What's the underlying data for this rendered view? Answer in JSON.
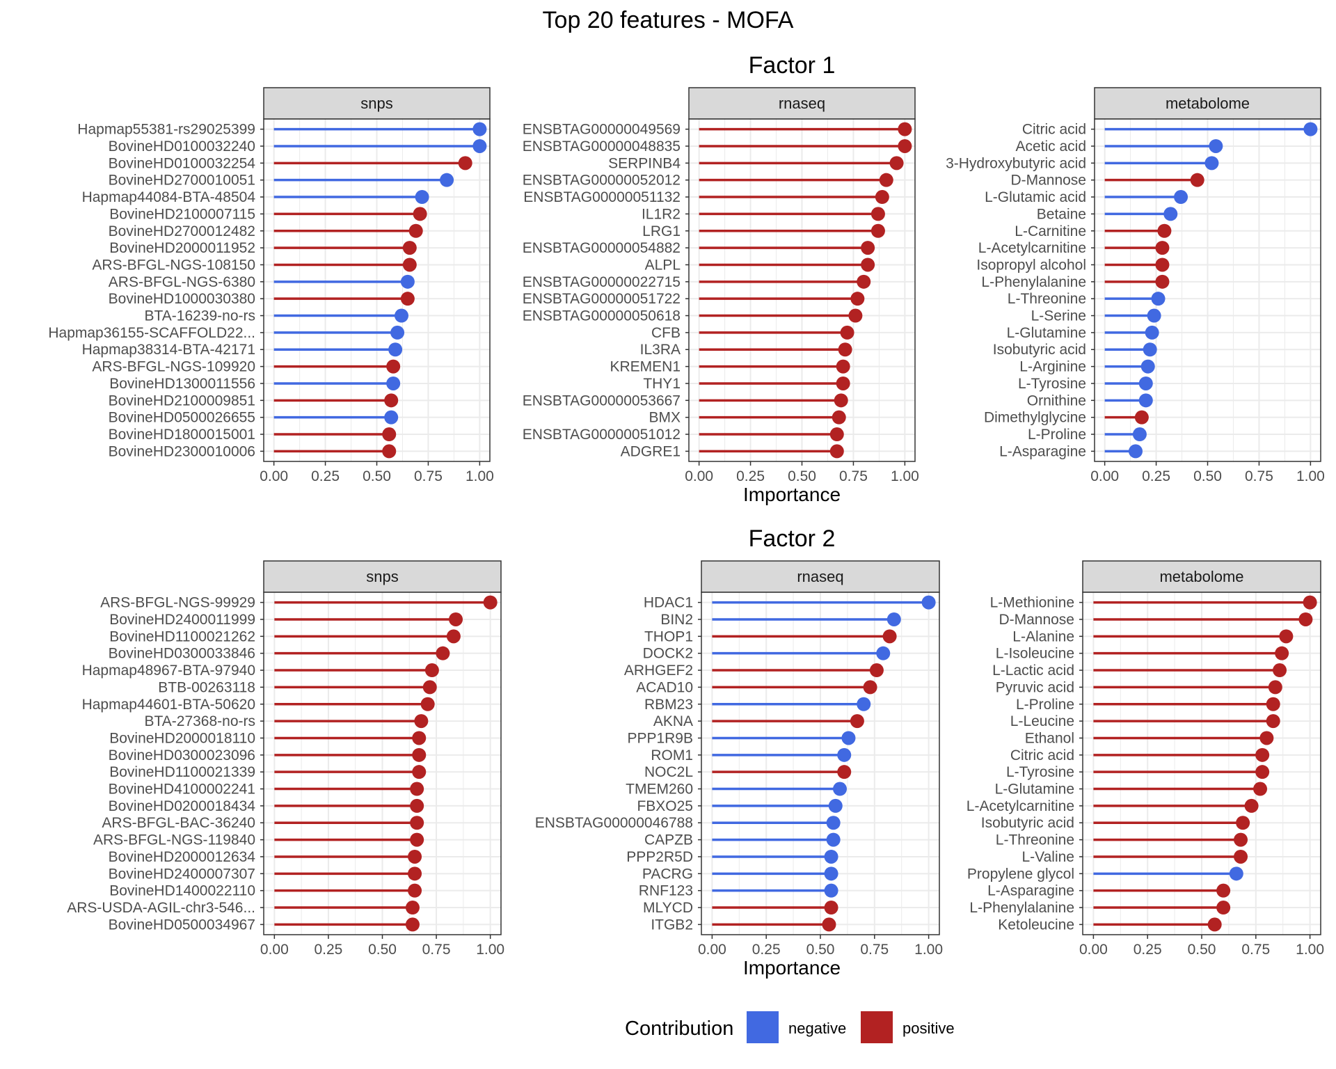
{
  "figure": {
    "title": "Top 20 features - MOFA",
    "xlabel": "Importance",
    "legend": {
      "title": "Contribution",
      "entries": [
        {
          "label": "negative",
          "color": "#4169E1"
        },
        {
          "label": "positive",
          "color": "#B22222"
        }
      ],
      "position": "bottom"
    }
  },
  "colors": {
    "negative": "#4169E1",
    "positive": "#B22222",
    "strip_bg": "#D9D9D9",
    "grid": "#EBEBEB"
  },
  "chart_data": [
    {
      "type": "lollipop",
      "factor": "Factor 1",
      "view": "snps",
      "xlim": [
        0,
        1
      ],
      "xticks": [
        "0.00",
        "0.25",
        "0.50",
        "0.75",
        "1.00"
      ],
      "grid": true,
      "features": [
        {
          "name": "Hapmap55381-rs29025399",
          "value": 1.0,
          "sign": "negative"
        },
        {
          "name": "BovineHD0100032240",
          "value": 1.0,
          "sign": "negative"
        },
        {
          "name": "BovineHD0100032254",
          "value": 0.93,
          "sign": "positive"
        },
        {
          "name": "BovineHD2700010051",
          "value": 0.84,
          "sign": "negative"
        },
        {
          "name": "Hapmap44084-BTA-48504",
          "value": 0.72,
          "sign": "negative"
        },
        {
          "name": "BovineHD2100007115",
          "value": 0.71,
          "sign": "positive"
        },
        {
          "name": "BovineHD2700012482",
          "value": 0.69,
          "sign": "positive"
        },
        {
          "name": "BovineHD2000011952",
          "value": 0.66,
          "sign": "positive"
        },
        {
          "name": "ARS-BFGL-NGS-108150",
          "value": 0.66,
          "sign": "positive"
        },
        {
          "name": "ARS-BFGL-NGS-6380",
          "value": 0.65,
          "sign": "negative"
        },
        {
          "name": "BovineHD1000030380",
          "value": 0.65,
          "sign": "positive"
        },
        {
          "name": "BTA-16239-no-rs",
          "value": 0.62,
          "sign": "negative"
        },
        {
          "name": "Hapmap36155-SCAFFOLD22...",
          "value": 0.6,
          "sign": "negative"
        },
        {
          "name": "Hapmap38314-BTA-42171",
          "value": 0.59,
          "sign": "negative"
        },
        {
          "name": "ARS-BFGL-NGS-109920",
          "value": 0.58,
          "sign": "positive"
        },
        {
          "name": "BovineHD1300011556",
          "value": 0.58,
          "sign": "negative"
        },
        {
          "name": "BovineHD2100009851",
          "value": 0.57,
          "sign": "positive"
        },
        {
          "name": "BovineHD0500026655",
          "value": 0.57,
          "sign": "negative"
        },
        {
          "name": "BovineHD1800015001",
          "value": 0.56,
          "sign": "positive"
        },
        {
          "name": "BovineHD2300010006",
          "value": 0.56,
          "sign": "positive"
        }
      ]
    },
    {
      "type": "lollipop",
      "factor": "Factor 1",
      "view": "rnaseq",
      "xlim": [
        0,
        1
      ],
      "xticks": [
        "0.00",
        "0.25",
        "0.50",
        "0.75",
        "1.00"
      ],
      "grid": true,
      "features": [
        {
          "name": "ENSBTAG00000049569",
          "value": 1.0,
          "sign": "positive"
        },
        {
          "name": "ENSBTAG00000048835",
          "value": 1.0,
          "sign": "positive"
        },
        {
          "name": "SERPINB4",
          "value": 0.96,
          "sign": "positive"
        },
        {
          "name": "ENSBTAG00000052012",
          "value": 0.91,
          "sign": "positive"
        },
        {
          "name": "ENSBTAG00000051132",
          "value": 0.89,
          "sign": "positive"
        },
        {
          "name": "IL1R2",
          "value": 0.87,
          "sign": "positive"
        },
        {
          "name": "LRG1",
          "value": 0.87,
          "sign": "positive"
        },
        {
          "name": "ENSBTAG00000054882",
          "value": 0.82,
          "sign": "positive"
        },
        {
          "name": "ALPL",
          "value": 0.82,
          "sign": "positive"
        },
        {
          "name": "ENSBTAG00000022715",
          "value": 0.8,
          "sign": "positive"
        },
        {
          "name": "ENSBTAG00000051722",
          "value": 0.77,
          "sign": "positive"
        },
        {
          "name": "ENSBTAG00000050618",
          "value": 0.76,
          "sign": "positive"
        },
        {
          "name": "CFB",
          "value": 0.72,
          "sign": "positive"
        },
        {
          "name": "IL3RA",
          "value": 0.71,
          "sign": "positive"
        },
        {
          "name": "KREMEN1",
          "value": 0.7,
          "sign": "positive"
        },
        {
          "name": "THY1",
          "value": 0.7,
          "sign": "positive"
        },
        {
          "name": "ENSBTAG00000053667",
          "value": 0.69,
          "sign": "positive"
        },
        {
          "name": "BMX",
          "value": 0.68,
          "sign": "positive"
        },
        {
          "name": "ENSBTAG00000051012",
          "value": 0.67,
          "sign": "positive"
        },
        {
          "name": "ADGRE1",
          "value": 0.67,
          "sign": "positive"
        }
      ]
    },
    {
      "type": "lollipop",
      "factor": "Factor 1",
      "view": "metabolome",
      "xlim": [
        0,
        1
      ],
      "xticks": [
        "0.00",
        "0.25",
        "0.50",
        "0.75",
        "1.00"
      ],
      "grid": true,
      "features": [
        {
          "name": "Citric acid",
          "value": 1.0,
          "sign": "negative"
        },
        {
          "name": "Acetic acid",
          "value": 0.54,
          "sign": "negative"
        },
        {
          "name": "3-Hydroxybutyric acid",
          "value": 0.52,
          "sign": "negative"
        },
        {
          "name": "D-Mannose",
          "value": 0.45,
          "sign": "positive"
        },
        {
          "name": "L-Glutamic acid",
          "value": 0.37,
          "sign": "negative"
        },
        {
          "name": "Betaine",
          "value": 0.32,
          "sign": "negative"
        },
        {
          "name": "L-Carnitine",
          "value": 0.29,
          "sign": "positive"
        },
        {
          "name": "L-Acetylcarnitine",
          "value": 0.28,
          "sign": "positive"
        },
        {
          "name": "Isopropyl alcohol",
          "value": 0.28,
          "sign": "positive"
        },
        {
          "name": "L-Phenylalanine",
          "value": 0.28,
          "sign": "positive"
        },
        {
          "name": "L-Threonine",
          "value": 0.26,
          "sign": "negative"
        },
        {
          "name": "L-Serine",
          "value": 0.24,
          "sign": "negative"
        },
        {
          "name": "L-Glutamine",
          "value": 0.23,
          "sign": "negative"
        },
        {
          "name": "Isobutyric acid",
          "value": 0.22,
          "sign": "negative"
        },
        {
          "name": "L-Arginine",
          "value": 0.21,
          "sign": "negative"
        },
        {
          "name": "L-Tyrosine",
          "value": 0.2,
          "sign": "negative"
        },
        {
          "name": "Ornithine",
          "value": 0.2,
          "sign": "negative"
        },
        {
          "name": "Dimethylglycine",
          "value": 0.18,
          "sign": "positive"
        },
        {
          "name": "L-Proline",
          "value": 0.17,
          "sign": "negative"
        },
        {
          "name": "L-Asparagine",
          "value": 0.15,
          "sign": "negative"
        }
      ]
    },
    {
      "type": "lollipop",
      "factor": "Factor 2",
      "view": "snps",
      "xlim": [
        0,
        1
      ],
      "xticks": [
        "0.00",
        "0.25",
        "0.50",
        "0.75",
        "1.00"
      ],
      "grid": true,
      "features": [
        {
          "name": "ARS-BFGL-NGS-99929",
          "value": 1.0,
          "sign": "positive"
        },
        {
          "name": "BovineHD2400011999",
          "value": 0.84,
          "sign": "positive"
        },
        {
          "name": "BovineHD1100021262",
          "value": 0.83,
          "sign": "positive"
        },
        {
          "name": "BovineHD0300033846",
          "value": 0.78,
          "sign": "positive"
        },
        {
          "name": "Hapmap48967-BTA-97940",
          "value": 0.73,
          "sign": "positive"
        },
        {
          "name": "BTB-00263118",
          "value": 0.72,
          "sign": "positive"
        },
        {
          "name": "Hapmap44601-BTA-50620",
          "value": 0.71,
          "sign": "positive"
        },
        {
          "name": "BTA-27368-no-rs",
          "value": 0.68,
          "sign": "positive"
        },
        {
          "name": "BovineHD2000018110",
          "value": 0.67,
          "sign": "positive"
        },
        {
          "name": "BovineHD0300023096",
          "value": 0.67,
          "sign": "positive"
        },
        {
          "name": "BovineHD1100021339",
          "value": 0.67,
          "sign": "positive"
        },
        {
          "name": "BovineHD4100002241",
          "value": 0.66,
          "sign": "positive"
        },
        {
          "name": "BovineHD0200018434",
          "value": 0.66,
          "sign": "positive"
        },
        {
          "name": "ARS-BFGL-BAC-36240",
          "value": 0.66,
          "sign": "positive"
        },
        {
          "name": "ARS-BFGL-NGS-119840",
          "value": 0.66,
          "sign": "positive"
        },
        {
          "name": "BovineHD2000012634",
          "value": 0.65,
          "sign": "positive"
        },
        {
          "name": "BovineHD2400007307",
          "value": 0.65,
          "sign": "positive"
        },
        {
          "name": "BovineHD1400022110",
          "value": 0.65,
          "sign": "positive"
        },
        {
          "name": "ARS-USDA-AGIL-chr3-546...",
          "value": 0.64,
          "sign": "positive"
        },
        {
          "name": "BovineHD0500034967",
          "value": 0.64,
          "sign": "positive"
        }
      ]
    },
    {
      "type": "lollipop",
      "factor": "Factor 2",
      "view": "rnaseq",
      "xlim": [
        0,
        1
      ],
      "xticks": [
        "0.00",
        "0.25",
        "0.50",
        "0.75",
        "1.00"
      ],
      "grid": true,
      "features": [
        {
          "name": "HDAC1",
          "value": 1.0,
          "sign": "negative"
        },
        {
          "name": "BIN2",
          "value": 0.84,
          "sign": "negative"
        },
        {
          "name": "THOP1",
          "value": 0.82,
          "sign": "positive"
        },
        {
          "name": "DOCK2",
          "value": 0.79,
          "sign": "negative"
        },
        {
          "name": "ARHGEF2",
          "value": 0.76,
          "sign": "positive"
        },
        {
          "name": "ACAD10",
          "value": 0.73,
          "sign": "positive"
        },
        {
          "name": "RBM23",
          "value": 0.7,
          "sign": "negative"
        },
        {
          "name": "AKNA",
          "value": 0.67,
          "sign": "positive"
        },
        {
          "name": "PPP1R9B",
          "value": 0.63,
          "sign": "negative"
        },
        {
          "name": "ROM1",
          "value": 0.61,
          "sign": "negative"
        },
        {
          "name": "NOC2L",
          "value": 0.61,
          "sign": "positive"
        },
        {
          "name": "TMEM260",
          "value": 0.59,
          "sign": "negative"
        },
        {
          "name": "FBXO25",
          "value": 0.57,
          "sign": "negative"
        },
        {
          "name": "ENSBTAG00000046788",
          "value": 0.56,
          "sign": "negative"
        },
        {
          "name": "CAPZB",
          "value": 0.56,
          "sign": "negative"
        },
        {
          "name": "PPP2R5D",
          "value": 0.55,
          "sign": "negative"
        },
        {
          "name": "PACRG",
          "value": 0.55,
          "sign": "negative"
        },
        {
          "name": "RNF123",
          "value": 0.55,
          "sign": "negative"
        },
        {
          "name": "MLYCD",
          "value": 0.55,
          "sign": "positive"
        },
        {
          "name": "ITGB2",
          "value": 0.54,
          "sign": "positive"
        }
      ]
    },
    {
      "type": "lollipop",
      "factor": "Factor 2",
      "view": "metabolome",
      "xlim": [
        0,
        1
      ],
      "xticks": [
        "0.00",
        "0.25",
        "0.50",
        "0.75",
        "1.00"
      ],
      "grid": true,
      "features": [
        {
          "name": "L-Methionine",
          "value": 1.0,
          "sign": "positive"
        },
        {
          "name": "D-Mannose",
          "value": 0.98,
          "sign": "positive"
        },
        {
          "name": "L-Alanine",
          "value": 0.89,
          "sign": "positive"
        },
        {
          "name": "L-Isoleucine",
          "value": 0.87,
          "sign": "positive"
        },
        {
          "name": "L-Lactic acid",
          "value": 0.86,
          "sign": "positive"
        },
        {
          "name": "Pyruvic acid",
          "value": 0.84,
          "sign": "positive"
        },
        {
          "name": "L-Proline",
          "value": 0.83,
          "sign": "positive"
        },
        {
          "name": "L-Leucine",
          "value": 0.83,
          "sign": "positive"
        },
        {
          "name": "Ethanol",
          "value": 0.8,
          "sign": "positive"
        },
        {
          "name": "Citric acid",
          "value": 0.78,
          "sign": "positive"
        },
        {
          "name": "L-Tyrosine",
          "value": 0.78,
          "sign": "positive"
        },
        {
          "name": "L-Glutamine",
          "value": 0.77,
          "sign": "positive"
        },
        {
          "name": "L-Acetylcarnitine",
          "value": 0.73,
          "sign": "positive"
        },
        {
          "name": "Isobutyric acid",
          "value": 0.69,
          "sign": "positive"
        },
        {
          "name": "L-Threonine",
          "value": 0.68,
          "sign": "positive"
        },
        {
          "name": "L-Valine",
          "value": 0.68,
          "sign": "positive"
        },
        {
          "name": "Propylene glycol",
          "value": 0.66,
          "sign": "negative"
        },
        {
          "name": "L-Asparagine",
          "value": 0.6,
          "sign": "positive"
        },
        {
          "name": "L-Phenylalanine",
          "value": 0.6,
          "sign": "positive"
        },
        {
          "name": "Ketoleucine",
          "value": 0.56,
          "sign": "positive"
        }
      ]
    }
  ]
}
